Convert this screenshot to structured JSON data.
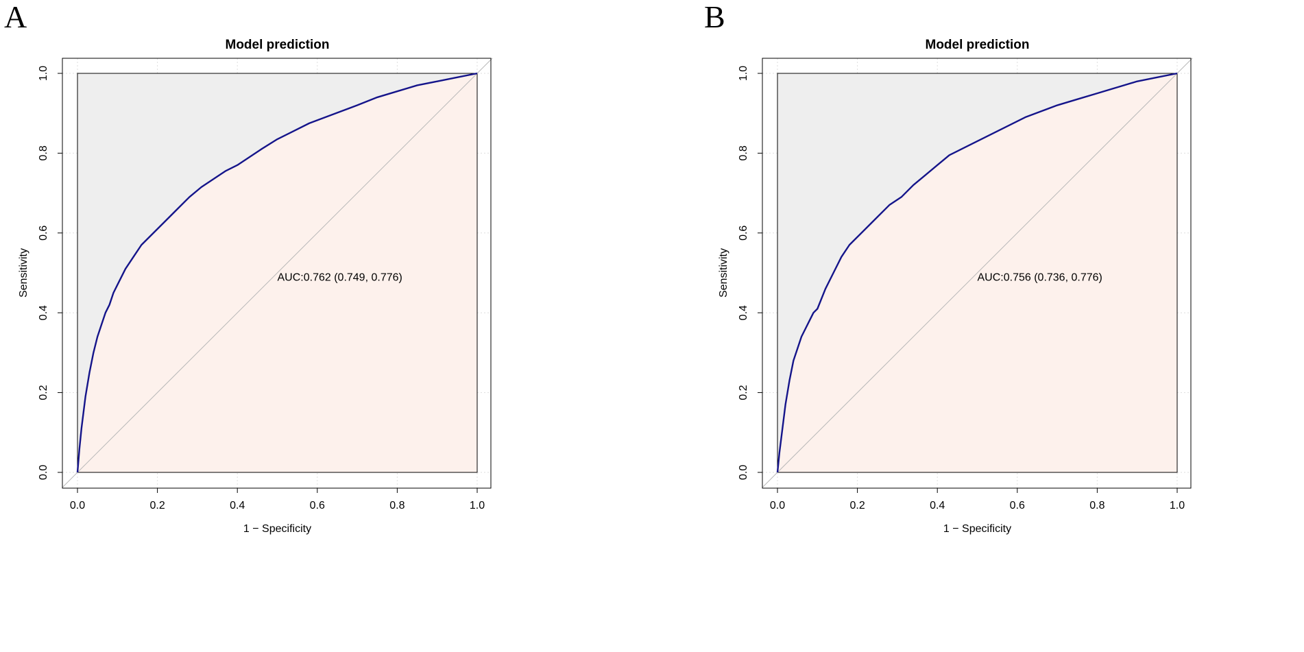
{
  "figure": {
    "panels": [
      {
        "letter": "A",
        "title": "Model prediction",
        "xlabel": "1 − Specificity",
        "ylabel": "Sensitivity",
        "auc_label": "AUC:0.762 (0.749, 0.776)"
      },
      {
        "letter": "B",
        "title": "Model prediction",
        "xlabel": "1 − Specificity",
        "ylabel": "Sensitivity",
        "auc_label": "AUC:0.756 (0.736, 0.776)"
      }
    ]
  },
  "colors": {
    "curve": "#14148a",
    "above_fill": "#eeeeee",
    "below_fill": "#fdf1ec",
    "diagonal": "#b8b8b8",
    "grid": "#dedede"
  },
  "chart_data": [
    {
      "type": "line",
      "title": "Model prediction",
      "xlabel": "1 − Specificity",
      "ylabel": "Sensitivity",
      "xlim": [
        0,
        1
      ],
      "ylim": [
        0,
        1
      ],
      "xticks": [
        "0.0",
        "0.2",
        "0.4",
        "0.6",
        "0.8",
        "1.0"
      ],
      "yticks": [
        "0.0",
        "0.2",
        "0.4",
        "0.6",
        "0.8",
        "1.0"
      ],
      "annotation": "AUC:0.762 (0.749, 0.776)",
      "auc": 0.762,
      "auc_ci": [
        0.749,
        0.776
      ],
      "series": [
        {
          "name": "ROC",
          "x": [
            0,
            0.005,
            0.01,
            0.015,
            0.02,
            0.03,
            0.04,
            0.05,
            0.06,
            0.07,
            0.08,
            0.09,
            0.1,
            0.12,
            0.14,
            0.16,
            0.18,
            0.2,
            0.22,
            0.25,
            0.28,
            0.31,
            0.34,
            0.37,
            0.4,
            0.43,
            0.46,
            0.5,
            0.54,
            0.58,
            0.62,
            0.66,
            0.7,
            0.75,
            0.8,
            0.85,
            0.9,
            0.95,
            1.0
          ],
          "y": [
            0,
            0.06,
            0.11,
            0.15,
            0.19,
            0.25,
            0.3,
            0.34,
            0.37,
            0.4,
            0.42,
            0.45,
            0.47,
            0.51,
            0.54,
            0.57,
            0.59,
            0.61,
            0.63,
            0.66,
            0.69,
            0.715,
            0.735,
            0.755,
            0.77,
            0.79,
            0.81,
            0.835,
            0.855,
            0.875,
            0.89,
            0.905,
            0.92,
            0.94,
            0.955,
            0.97,
            0.98,
            0.99,
            1.0
          ]
        },
        {
          "name": "Reference",
          "x": [
            0,
            1
          ],
          "y": [
            0,
            1
          ]
        }
      ]
    },
    {
      "type": "line",
      "title": "Model prediction",
      "xlabel": "1 − Specificity",
      "ylabel": "Sensitivity",
      "xlim": [
        0,
        1
      ],
      "ylim": [
        0,
        1
      ],
      "xticks": [
        "0.0",
        "0.2",
        "0.4",
        "0.6",
        "0.8",
        "1.0"
      ],
      "yticks": [
        "0.0",
        "0.2",
        "0.4",
        "0.6",
        "0.8",
        "1.0"
      ],
      "annotation": "AUC:0.756 (0.736, 0.776)",
      "auc": 0.756,
      "auc_ci": [
        0.736,
        0.776
      ],
      "series": [
        {
          "name": "ROC",
          "x": [
            0,
            0.005,
            0.01,
            0.015,
            0.02,
            0.03,
            0.04,
            0.05,
            0.06,
            0.07,
            0.08,
            0.09,
            0.1,
            0.12,
            0.14,
            0.16,
            0.18,
            0.2,
            0.22,
            0.25,
            0.28,
            0.31,
            0.34,
            0.37,
            0.4,
            0.43,
            0.46,
            0.5,
            0.54,
            0.58,
            0.62,
            0.66,
            0.7,
            0.75,
            0.8,
            0.85,
            0.9,
            0.95,
            1.0
          ],
          "y": [
            0,
            0.05,
            0.09,
            0.13,
            0.17,
            0.23,
            0.28,
            0.31,
            0.34,
            0.36,
            0.38,
            0.4,
            0.41,
            0.46,
            0.5,
            0.54,
            0.57,
            0.59,
            0.61,
            0.64,
            0.67,
            0.69,
            0.72,
            0.745,
            0.77,
            0.795,
            0.81,
            0.83,
            0.85,
            0.87,
            0.89,
            0.905,
            0.92,
            0.935,
            0.95,
            0.965,
            0.98,
            0.99,
            1.0
          ]
        },
        {
          "name": "Reference",
          "x": [
            0,
            1
          ],
          "y": [
            0,
            1
          ]
        }
      ]
    }
  ]
}
